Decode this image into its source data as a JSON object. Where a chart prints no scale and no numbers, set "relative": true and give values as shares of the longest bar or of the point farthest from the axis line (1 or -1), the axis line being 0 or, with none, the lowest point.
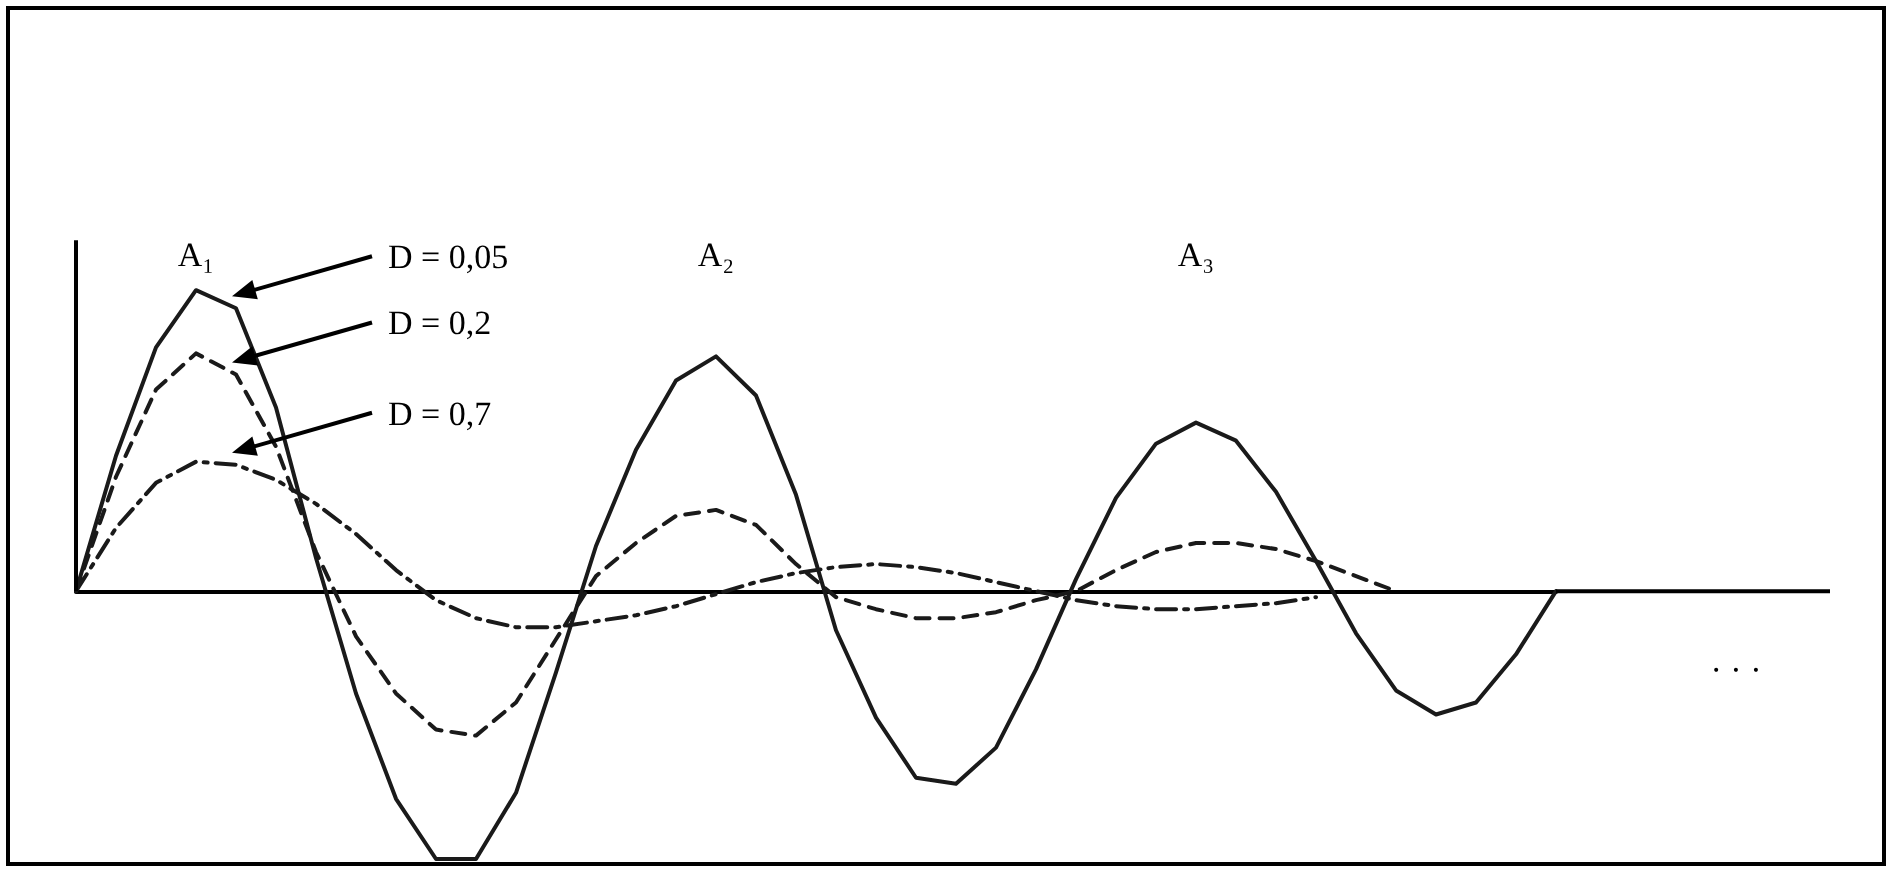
{
  "chart_data": {
    "type": "line",
    "relative": true,
    "grid": false,
    "legend": "top left",
    "marker": "none",
    "categories": [
      null,
      null,
      null,
      null,
      null,
      null,
      null,
      null,
      null,
      null,
      null,
      null,
      null,
      null,
      null,
      null,
      null,
      null,
      null,
      null,
      null,
      null,
      null,
      null,
      null,
      null,
      null,
      null,
      null,
      null,
      null,
      null,
      null,
      null,
      null,
      null,
      null,
      null
    ],
    "series": [
      {
        "name": "D = 0,05",
        "color": "#1a1a1a",
        "line_style": "solid",
        "values": [
          0,
          0.45,
          0.81,
          1,
          0.94,
          0.61,
          0.11,
          -0.34,
          -0.69,
          -0.89,
          -0.89,
          -0.67,
          -0.27,
          0.15,
          0.47,
          0.7,
          0.78,
          0.65,
          0.32,
          -0.13,
          -0.42,
          -0.62,
          -0.64,
          -0.52,
          -0.26,
          0.04,
          0.31,
          0.49,
          0.56,
          0.5,
          0.33,
          0.1,
          -0.14,
          -0.33,
          -0.41,
          -0.37,
          -0.21,
          0
        ]
      },
      {
        "name": "D = 0,2",
        "color": "#1a1a1a",
        "line_style": "dashed",
        "values": [
          0,
          0.38,
          0.67,
          0.79,
          0.72,
          0.48,
          0.13,
          -0.15,
          -0.34,
          -0.46,
          -0.48,
          -0.37,
          -0.16,
          0.05,
          0.16,
          0.25,
          0.27,
          0.22,
          0.09,
          -0.02,
          -0.06,
          -0.09,
          -0.09,
          -0.07,
          -0.03,
          0,
          0.07,
          0.13,
          0.16,
          0.16,
          0.14,
          0.1,
          0.05,
          0,
          null,
          null,
          null,
          null
        ]
      },
      {
        "name": "D = 0,7",
        "color": "#1a1a1a",
        "line_style": "dotted",
        "values": [
          0,
          0.21,
          0.36,
          0.43,
          0.42,
          0.37,
          0.29,
          0.19,
          0.07,
          -0.03,
          -0.09,
          -0.12,
          -0.12,
          -0.1,
          -0.08,
          -0.05,
          -0.01,
          0.03,
          0.06,
          0.08,
          0.09,
          0.08,
          0.06,
          0.03,
          0,
          -0.03,
          -0.05,
          -0.06,
          -0.06,
          -0.05,
          -0.04,
          -0.02,
          null,
          null,
          null,
          null,
          null,
          null
        ]
      }
    ],
    "annotations": [
      "A₁",
      "A₂",
      "A₃",
      "· · ·"
    ]
  }
}
